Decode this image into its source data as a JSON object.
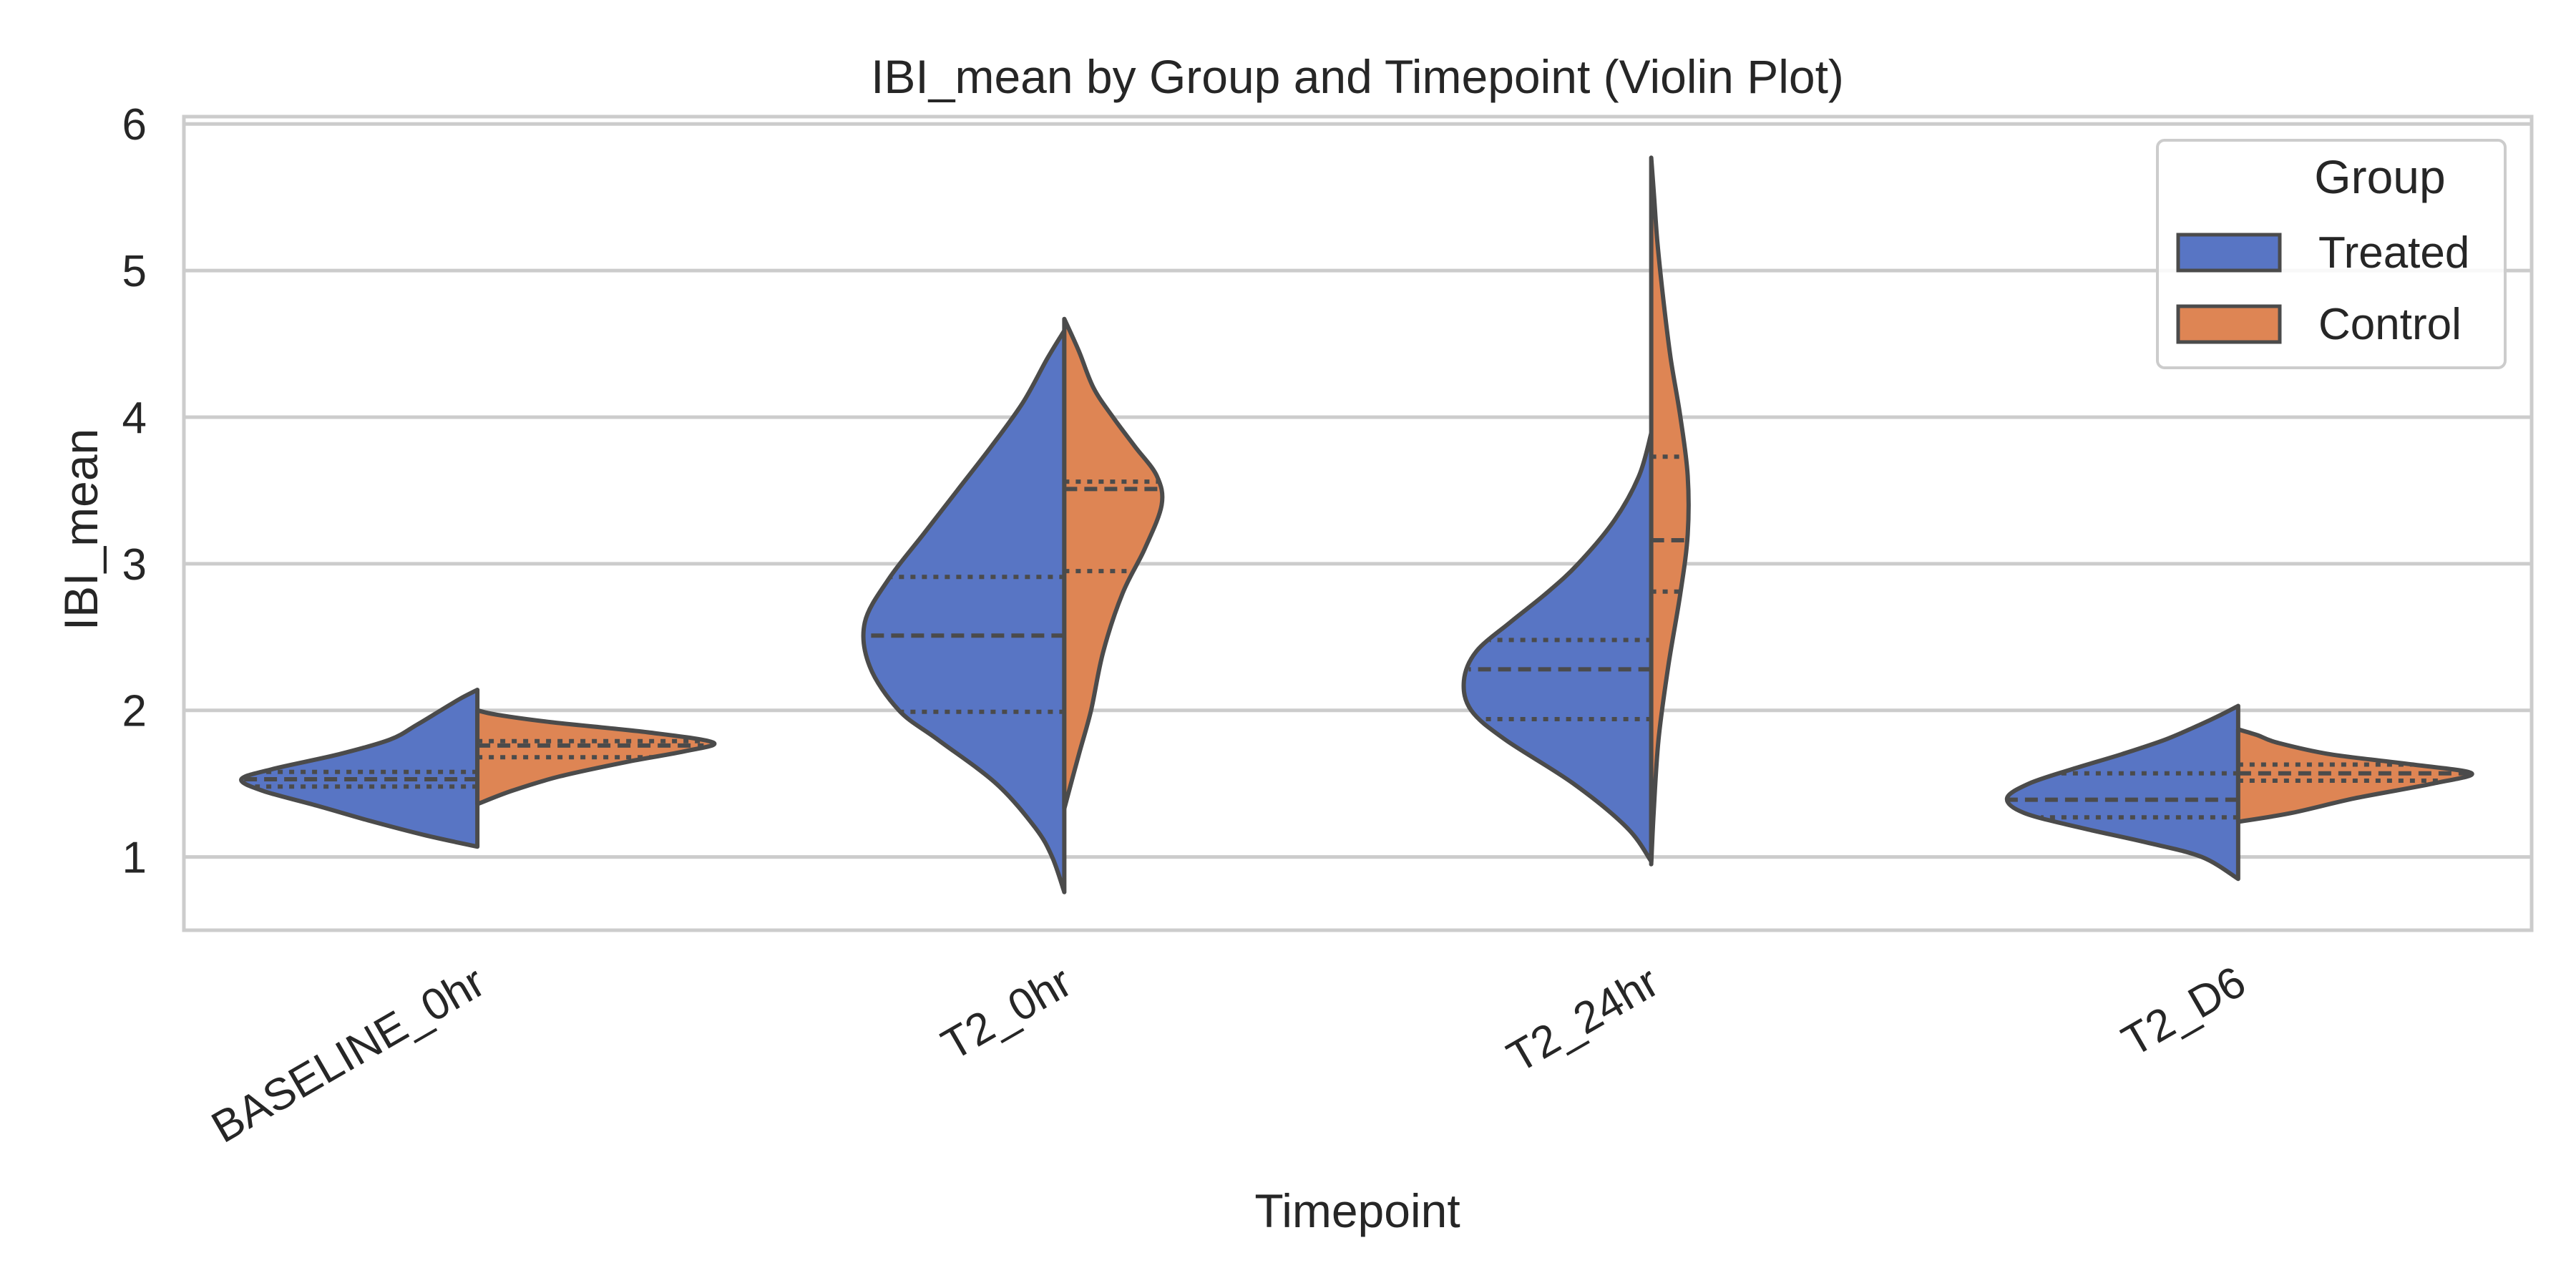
{
  "chart_data": {
    "type": "violin",
    "title": "IBI_mean by Group and Timepoint (Violin Plot)",
    "xlabel": "Timepoint",
    "ylabel": "IBI_mean",
    "ylim": [
      0.5,
      6.05
    ],
    "yticks": [
      1,
      2,
      3,
      4,
      5,
      6
    ],
    "grid": "horizontal",
    "categories": [
      "BASELINE_0hr",
      "T2_0hr",
      "T2_24hr",
      "T2_D6"
    ],
    "legend": {
      "title": "Group",
      "placement": "top-right",
      "entries": [
        {
          "name": "Treated",
          "color": "#5875c4"
        },
        {
          "name": "Control",
          "color": "#de8554"
        }
      ]
    },
    "series": [
      {
        "name": "Treated",
        "color": "#5875c4",
        "side": "left",
        "violins": [
          {
            "min": 1.07,
            "q1": 1.48,
            "median": 1.53,
            "q3": 1.58,
            "max": 2.14,
            "profile": [
              [
                1.07,
                0.0
              ],
              [
                1.15,
                0.22
              ],
              [
                1.25,
                0.45
              ],
              [
                1.35,
                0.66
              ],
              [
                1.45,
                0.88
              ],
              [
                1.53,
                0.97
              ],
              [
                1.6,
                0.84
              ],
              [
                1.7,
                0.57
              ],
              [
                1.8,
                0.36
              ],
              [
                1.9,
                0.25
              ],
              [
                2.0,
                0.15
              ],
              [
                2.08,
                0.07
              ],
              [
                2.14,
                0.0
              ]
            ]
          },
          {
            "min": 0.76,
            "q1": 1.99,
            "median": 2.51,
            "q3": 2.91,
            "max": 4.59,
            "profile": [
              [
                0.76,
                0.0
              ],
              [
                1.0,
                0.05
              ],
              [
                1.2,
                0.12
              ],
              [
                1.5,
                0.28
              ],
              [
                1.8,
                0.52
              ],
              [
                2.0,
                0.68
              ],
              [
                2.3,
                0.8
              ],
              [
                2.6,
                0.82
              ],
              [
                2.9,
                0.72
              ],
              [
                3.2,
                0.58
              ],
              [
                3.5,
                0.44
              ],
              [
                3.8,
                0.3
              ],
              [
                4.1,
                0.17
              ],
              [
                4.4,
                0.07
              ],
              [
                4.59,
                0.0
              ]
            ]
          },
          {
            "min": 0.97,
            "q1": 1.94,
            "median": 2.28,
            "q3": 2.48,
            "max": 3.89,
            "profile": [
              [
                0.97,
                0.0
              ],
              [
                1.2,
                0.1
              ],
              [
                1.5,
                0.32
              ],
              [
                1.8,
                0.6
              ],
              [
                2.0,
                0.74
              ],
              [
                2.2,
                0.77
              ],
              [
                2.4,
                0.72
              ],
              [
                2.6,
                0.58
              ],
              [
                2.8,
                0.43
              ],
              [
                3.0,
                0.3
              ],
              [
                3.3,
                0.15
              ],
              [
                3.6,
                0.05
              ],
              [
                3.89,
                0.0
              ]
            ]
          },
          {
            "min": 0.85,
            "q1": 1.27,
            "median": 1.39,
            "q3": 1.57,
            "max": 2.03,
            "profile": [
              [
                0.85,
                0.0
              ],
              [
                1.0,
                0.15
              ],
              [
                1.1,
                0.38
              ],
              [
                1.2,
                0.65
              ],
              [
                1.3,
                0.88
              ],
              [
                1.4,
                0.95
              ],
              [
                1.5,
                0.86
              ],
              [
                1.6,
                0.68
              ],
              [
                1.7,
                0.48
              ],
              [
                1.8,
                0.3
              ],
              [
                1.9,
                0.16
              ],
              [
                1.97,
                0.07
              ],
              [
                2.03,
                0.0
              ]
            ]
          }
        ]
      },
      {
        "name": "Control",
        "color": "#de8554",
        "side": "right",
        "violins": [
          {
            "min": 1.36,
            "q1": 1.68,
            "median": 1.76,
            "q3": 1.79,
            "max": 2.0,
            "profile": [
              [
                1.36,
                0.0
              ],
              [
                1.45,
                0.14
              ],
              [
                1.55,
                0.34
              ],
              [
                1.65,
                0.62
              ],
              [
                1.72,
                0.85
              ],
              [
                1.78,
                0.97
              ],
              [
                1.85,
                0.7
              ],
              [
                1.92,
                0.3
              ],
              [
                1.97,
                0.08
              ],
              [
                2.0,
                0.0
              ]
            ]
          },
          {
            "min": 1.33,
            "q1": 2.95,
            "median": 3.51,
            "q3": 3.56,
            "max": 4.67,
            "profile": [
              [
                1.33,
                0.0
              ],
              [
                1.7,
                0.06
              ],
              [
                2.0,
                0.11
              ],
              [
                2.4,
                0.16
              ],
              [
                2.8,
                0.24
              ],
              [
                3.1,
                0.33
              ],
              [
                3.4,
                0.4
              ],
              [
                3.6,
                0.38
              ],
              [
                3.8,
                0.29
              ],
              [
                4.0,
                0.2
              ],
              [
                4.2,
                0.12
              ],
              [
                4.45,
                0.06
              ],
              [
                4.67,
                0.0
              ]
            ]
          },
          {
            "min": 0.95,
            "q1": 2.81,
            "median": 3.16,
            "q3": 3.73,
            "max": 5.77,
            "profile": [
              [
                0.95,
                0.0
              ],
              [
                1.3,
                0.01
              ],
              [
                1.8,
                0.03
              ],
              [
                2.3,
                0.07
              ],
              [
                2.8,
                0.12
              ],
              [
                3.2,
                0.15
              ],
              [
                3.6,
                0.15
              ],
              [
                4.0,
                0.12
              ],
              [
                4.4,
                0.08
              ],
              [
                4.8,
                0.05
              ],
              [
                5.2,
                0.025
              ],
              [
                5.5,
                0.012
              ],
              [
                5.77,
                0.0
              ]
            ]
          },
          {
            "min": 1.24,
            "q1": 1.52,
            "median": 1.57,
            "q3": 1.63,
            "max": 1.87,
            "profile": [
              [
                1.24,
                0.0
              ],
              [
                1.3,
                0.22
              ],
              [
                1.4,
                0.48
              ],
              [
                1.5,
                0.8
              ],
              [
                1.57,
                0.96
              ],
              [
                1.63,
                0.72
              ],
              [
                1.7,
                0.38
              ],
              [
                1.78,
                0.16
              ],
              [
                1.83,
                0.08
              ],
              [
                1.87,
                0.0
              ]
            ]
          }
        ]
      }
    ]
  }
}
